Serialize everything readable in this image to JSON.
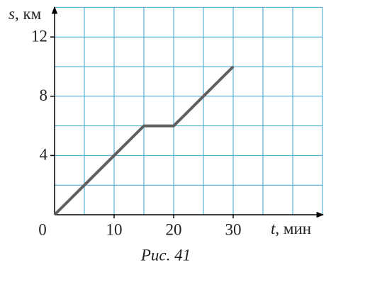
{
  "chart_data": {
    "type": "line",
    "ylabel_var": "s",
    "ylabel_unit": ", км",
    "xlabel_var": "t",
    "xlabel_unit": ", мин",
    "origin_label": "0",
    "caption": "Рис. 41",
    "x": [
      0,
      15,
      20,
      30
    ],
    "series": [
      {
        "color": "#5f5f5f",
        "values": [
          0,
          6,
          6,
          10
        ]
      }
    ],
    "xlim": [
      0,
      45
    ],
    "ylim": [
      0,
      14
    ],
    "xticks": [
      10,
      20,
      30
    ],
    "yticks": [
      4,
      8,
      12
    ],
    "xgrid": [
      5,
      10,
      15,
      20,
      25,
      30,
      35,
      40,
      45
    ],
    "ygrid": [
      2,
      4,
      6,
      8,
      10,
      12,
      14
    ],
    "grid_color": "#3aa6cf"
  }
}
